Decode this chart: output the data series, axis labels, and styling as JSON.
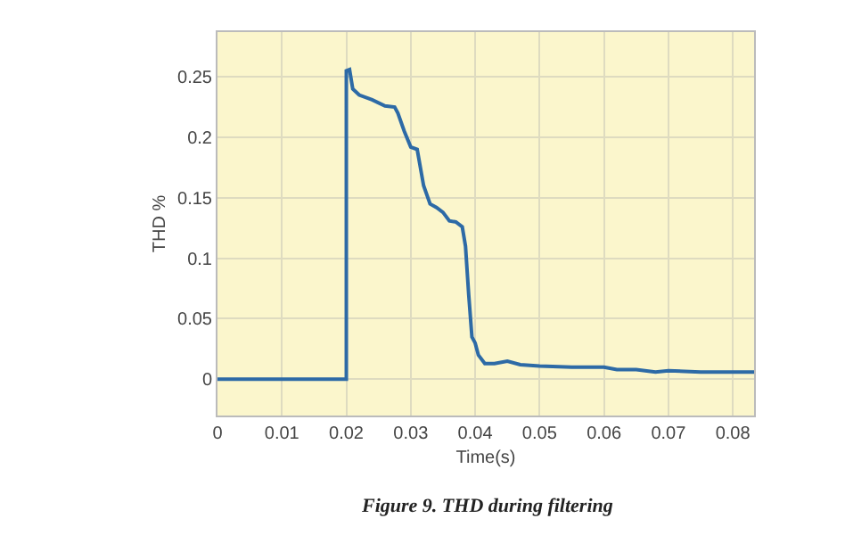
{
  "chart_data": {
    "type": "line",
    "xlabel": "Time(s)",
    "ylabel": "THD %",
    "annotations": [
      "Figure 9. THD during filtering"
    ],
    "x": [
      0,
      0.02,
      0.02,
      0.0205,
      0.021,
      0.022,
      0.024,
      0.026,
      0.0275,
      0.028,
      0.029,
      0.03,
      0.031,
      0.032,
      0.033,
      0.034,
      0.035,
      0.036,
      0.037,
      0.038,
      0.0385,
      0.039,
      0.0395,
      0.04,
      0.0405,
      0.0415,
      0.043,
      0.045,
      0.047,
      0.05,
      0.055,
      0.06,
      0.062,
      0.065,
      0.068,
      0.07,
      0.075,
      0.0833
    ],
    "series": [
      {
        "color": "#2d6aa6",
        "values": [
          0,
          0,
          0.255,
          0.256,
          0.24,
          0.235,
          0.231,
          0.226,
          0.225,
          0.22,
          0.205,
          0.192,
          0.19,
          0.16,
          0.145,
          0.142,
          0.138,
          0.131,
          0.13,
          0.126,
          0.11,
          0.07,
          0.035,
          0.03,
          0.02,
          0.013,
          0.013,
          0.015,
          0.012,
          0.011,
          0.01,
          0.01,
          0.008,
          0.008,
          0.006,
          0.007,
          0.006,
          0.006
        ]
      }
    ],
    "xlim": [
      0,
      0.0833
    ],
    "xticks": [
      0,
      0.01,
      0.02,
      0.03,
      0.04,
      0.05,
      0.06,
      0.07,
      0.08
    ],
    "ylim": [
      -0.03,
      0.287
    ],
    "yticks": [
      0,
      0.05,
      0.1,
      0.15,
      0.2,
      0.25
    ],
    "grid": true,
    "marker": "none",
    "line_style": "solid"
  }
}
